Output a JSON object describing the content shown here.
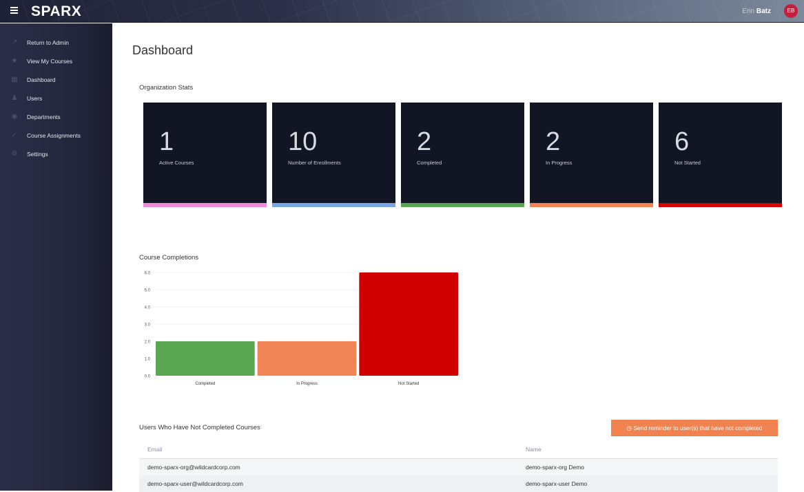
{
  "header": {
    "logo": "SPARX",
    "user_first": "Erin",
    "user_last": "Batz",
    "avatar_initials": "EB"
  },
  "sidebar": {
    "items": [
      {
        "label": "Return to Admin",
        "icon": "external-link-icon"
      },
      {
        "label": "View My Courses",
        "icon": "star-icon"
      },
      {
        "label": "Dashboard",
        "icon": "dashboard-icon"
      },
      {
        "label": "Users",
        "icon": "people-icon"
      },
      {
        "label": "Departments",
        "icon": "departments-icon"
      },
      {
        "label": "Course Assignments",
        "icon": "check-icon"
      },
      {
        "label": "Settings",
        "icon": "gear-icon"
      }
    ]
  },
  "page": {
    "title": "Dashboard"
  },
  "stats": {
    "title": "Organization Stats",
    "cards": [
      {
        "value": "1",
        "label": "Active Courses",
        "color": "#f08ad8"
      },
      {
        "value": "10",
        "label": "Number of Enrollments",
        "color": "#78a6e4"
      },
      {
        "value": "2",
        "label": "Completed",
        "color": "#5aa552"
      },
      {
        "value": "2",
        "label": "In Progress",
        "color": "#f0834f"
      },
      {
        "value": "6",
        "label": "Not Started",
        "color": "#d20000"
      }
    ]
  },
  "completions": {
    "title": "Course Completions"
  },
  "chart_data": {
    "type": "bar",
    "categories": [
      "Completed",
      "In Progress",
      "Not Started"
    ],
    "values": [
      2,
      2,
      6
    ],
    "colors": [
      "#5ba653",
      "#f08455",
      "#d10000"
    ],
    "ylim": [
      0,
      6
    ],
    "yticks": [
      "0.0",
      "1.0",
      "2.0",
      "3.0",
      "4.0",
      "5.0",
      "6.0"
    ],
    "grid": true
  },
  "users_table": {
    "title": "Users Who Have Not Completed Courses",
    "reminder_button": "Send reminder to user(s) that have not completed",
    "columns": [
      "Email",
      "Name"
    ],
    "rows": [
      {
        "email": "demo-sparx-org@wildcardcorp.com",
        "name": "demo-sparx-org Demo"
      },
      {
        "email": "demo-sparx-user@wildcardcorp.com",
        "name": "demo-sparx-user Demo"
      }
    ]
  }
}
